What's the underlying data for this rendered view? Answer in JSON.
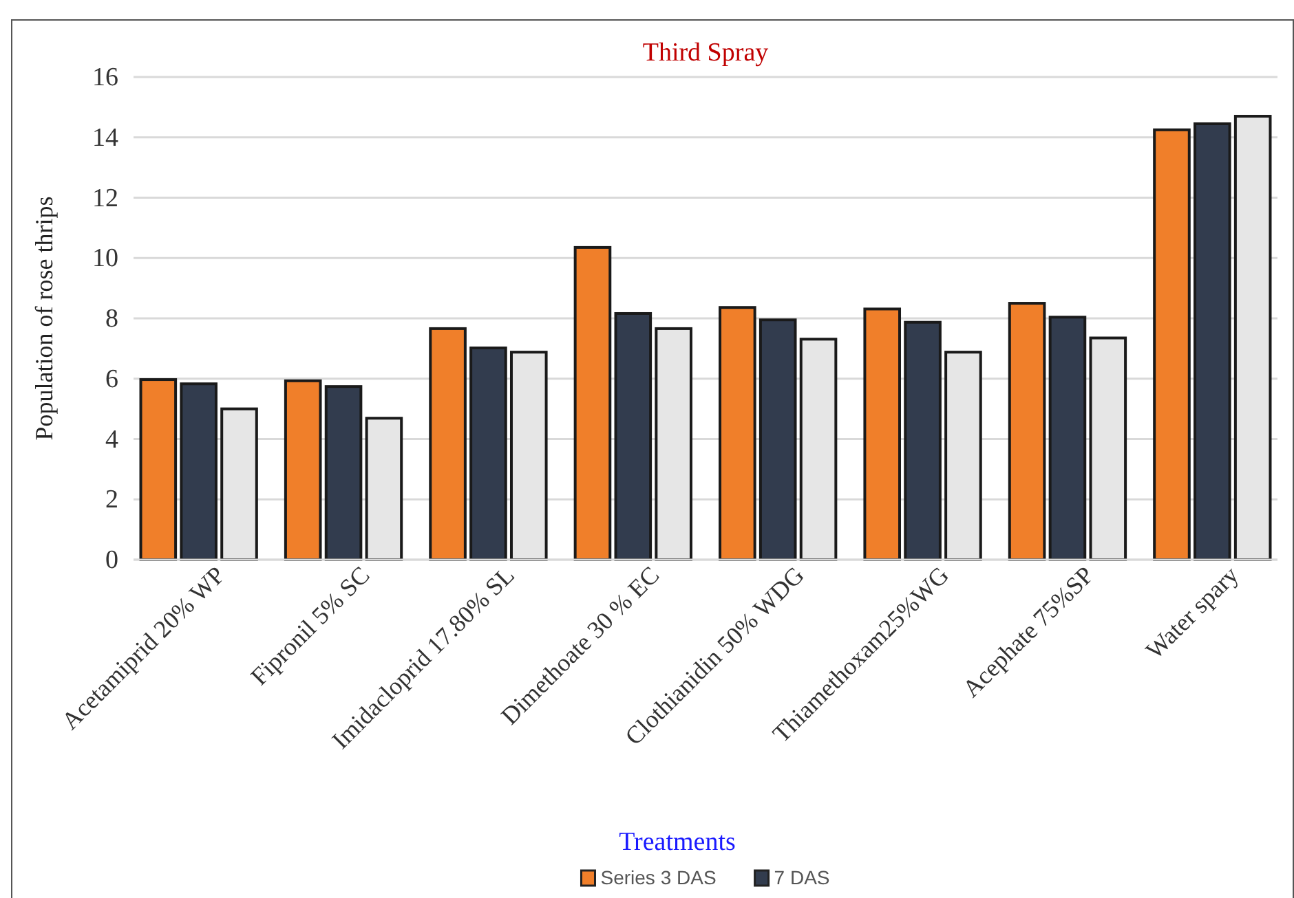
{
  "chart_data": {
    "type": "bar",
    "title": "Third Spray",
    "xlabel": "Treatments",
    "ylabel": "Population of rose thrips",
    "categories": [
      "Acetamiprid 20% WP",
      "Fipronil 5% SC",
      "Imidacloprid 17.80% SL",
      "Dimethoate 30 % EC",
      "Clothianidin 50% WDG",
      "Thiamethoxam25%WG",
      "Acephate 75%SP",
      "Water spary"
    ],
    "series": [
      {
        "name": "Series 3 DAS",
        "color": "#f07f2a",
        "values": [
          5.97,
          5.93,
          7.66,
          10.35,
          8.36,
          8.31,
          8.5,
          14.25
        ]
      },
      {
        "name": "7 DAS",
        "color": "#323c4e",
        "values": [
          5.83,
          5.74,
          7.02,
          8.16,
          7.95,
          7.87,
          8.04,
          14.45
        ]
      },
      {
        "color": "#e6e6e6",
        "values": [
          5.0,
          4.69,
          6.88,
          7.66,
          7.31,
          6.88,
          7.35,
          14.7
        ]
      }
    ],
    "ylim": [
      0,
      16
    ],
    "yticks": [
      0,
      2,
      4,
      6,
      8,
      10,
      12,
      14,
      16
    ],
    "grid": "y",
    "legend": "bottom"
  }
}
